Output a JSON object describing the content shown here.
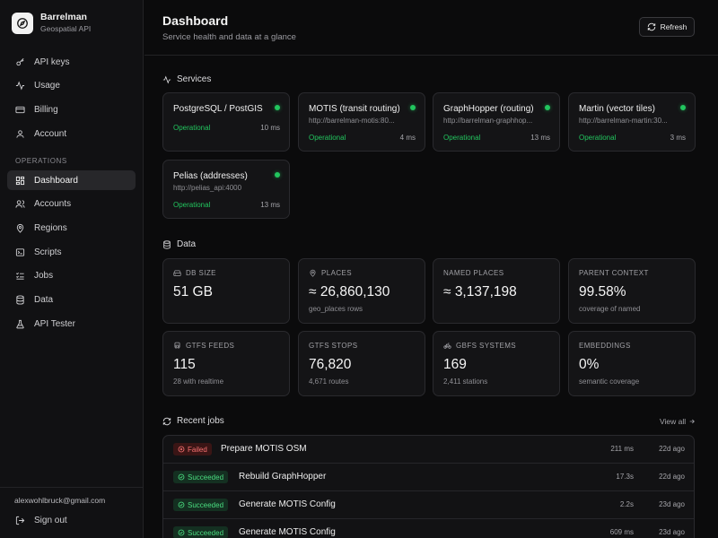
{
  "brand": {
    "name": "Barrelman",
    "subtitle": "Geospatial API"
  },
  "sidebar": {
    "top_items": [
      {
        "label": "API keys",
        "icon": "key-icon"
      },
      {
        "label": "Usage",
        "icon": "activity-icon"
      },
      {
        "label": "Billing",
        "icon": "credit-card-icon"
      },
      {
        "label": "Account",
        "icon": "user-icon"
      }
    ],
    "section_label": "OPERATIONS",
    "ops_items": [
      {
        "label": "Dashboard",
        "icon": "grid-icon",
        "active": true
      },
      {
        "label": "Accounts",
        "icon": "users-icon"
      },
      {
        "label": "Regions",
        "icon": "map-pin-icon"
      },
      {
        "label": "Scripts",
        "icon": "terminal-icon"
      },
      {
        "label": "Jobs",
        "icon": "list-check-icon"
      },
      {
        "label": "Data",
        "icon": "database-icon"
      },
      {
        "label": "API Tester",
        "icon": "flask-icon"
      }
    ],
    "email": "alexwohlbruck@gmail.com",
    "signout": "Sign out"
  },
  "header": {
    "title": "Dashboard",
    "subtitle": "Service health and data at a glance",
    "refresh_label": "Refresh"
  },
  "services": {
    "title": "Services",
    "items": [
      {
        "name": "PostgreSQL / PostGIS",
        "url": "",
        "status": "Operational",
        "latency": "10 ms"
      },
      {
        "name": "MOTIS (transit routing)",
        "url": "http://barrelman-motis:80...",
        "status": "Operational",
        "latency": "4 ms"
      },
      {
        "name": "GraphHopper (routing)",
        "url": "http://barrelman-graphhop...",
        "status": "Operational",
        "latency": "13 ms"
      },
      {
        "name": "Martin (vector tiles)",
        "url": "http://barrelman-martin:30...",
        "status": "Operational",
        "latency": "3 ms"
      },
      {
        "name": "Pelias (addresses)",
        "url": "http://pelias_api:4000",
        "status": "Operational",
        "latency": "13 ms"
      }
    ]
  },
  "data_section": {
    "title": "Data",
    "stats": [
      {
        "label": "DB SIZE",
        "icon": "hard-drive-icon",
        "value": "51 GB",
        "sub": ""
      },
      {
        "label": "PLACES",
        "icon": "map-pin-icon",
        "value": "≈ 26,860,130",
        "sub": "geo_places rows"
      },
      {
        "label": "NAMED PLACES",
        "icon": "",
        "value": "≈ 3,137,198",
        "sub": ""
      },
      {
        "label": "PARENT CONTEXT",
        "icon": "",
        "value": "99.58%",
        "sub": "coverage of named"
      },
      {
        "label": "GTFS FEEDS",
        "icon": "bus-icon",
        "value": "115",
        "sub": "28 with realtime"
      },
      {
        "label": "GTFS STOPS",
        "icon": "",
        "value": "76,820",
        "sub": "4,671 routes"
      },
      {
        "label": "GBFS SYSTEMS",
        "icon": "bike-icon",
        "value": "169",
        "sub": "2,411 stations"
      },
      {
        "label": "EMBEDDINGS",
        "icon": "",
        "value": "0%",
        "sub": "semantic coverage"
      }
    ]
  },
  "jobs": {
    "title": "Recent jobs",
    "view_all": "View all",
    "items": [
      {
        "status": "Failed",
        "name": "Prepare MOTIS OSM",
        "duration": "211 ms",
        "ago": "22d ago"
      },
      {
        "status": "Succeeded",
        "name": "Rebuild GraphHopper",
        "duration": "17.3s",
        "ago": "22d ago"
      },
      {
        "status": "Succeeded",
        "name": "Generate MOTIS Config",
        "duration": "2.2s",
        "ago": "23d ago"
      },
      {
        "status": "Succeeded",
        "name": "Generate MOTIS Config",
        "duration": "609 ms",
        "ago": "23d ago"
      }
    ]
  },
  "colors": {
    "operational": "#22c55e",
    "failed": "#f87171",
    "background": "#0b0b0c",
    "card": "#141416"
  }
}
